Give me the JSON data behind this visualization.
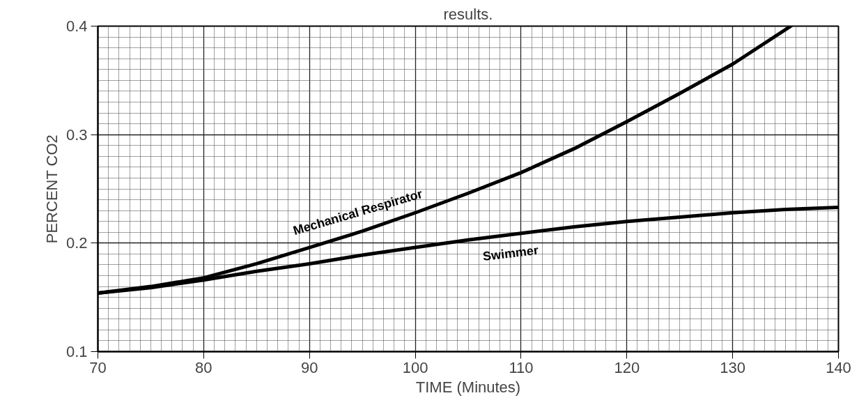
{
  "chart_data": {
    "type": "line",
    "title": "results.",
    "xlabel": "TIME (Minutes)",
    "ylabel": "PERCENT CO2",
    "x": [
      70,
      75,
      80,
      85,
      90,
      95,
      100,
      105,
      110,
      115,
      120,
      125,
      130,
      135.5
    ],
    "series": [
      {
        "name": "Mechanical Respirator",
        "color": "#000000",
        "values": [
          0.154,
          0.16,
          0.168,
          0.181,
          0.196,
          0.211,
          0.228,
          0.246,
          0.265,
          0.287,
          0.312,
          0.338,
          0.365,
          0.4
        ]
      },
      {
        "name": "Swimmer",
        "color": "#000000",
        "x": [
          70,
          75,
          80,
          85,
          90,
          95,
          100,
          105,
          110,
          115,
          120,
          125,
          130,
          135,
          140
        ],
        "values": [
          0.154,
          0.159,
          0.166,
          0.174,
          0.181,
          0.189,
          0.196,
          0.203,
          0.209,
          0.215,
          0.22,
          0.224,
          0.228,
          0.231,
          0.233
        ]
      }
    ],
    "xlim": [
      70,
      140
    ],
    "ylim": [
      0.1,
      0.4
    ],
    "xticks": [
      70,
      80,
      90,
      100,
      110,
      120,
      130,
      140
    ],
    "yticks": [
      0.1,
      0.2,
      0.3,
      0.4
    ],
    "grid": true,
    "line_style": "solid",
    "marker": "none"
  }
}
